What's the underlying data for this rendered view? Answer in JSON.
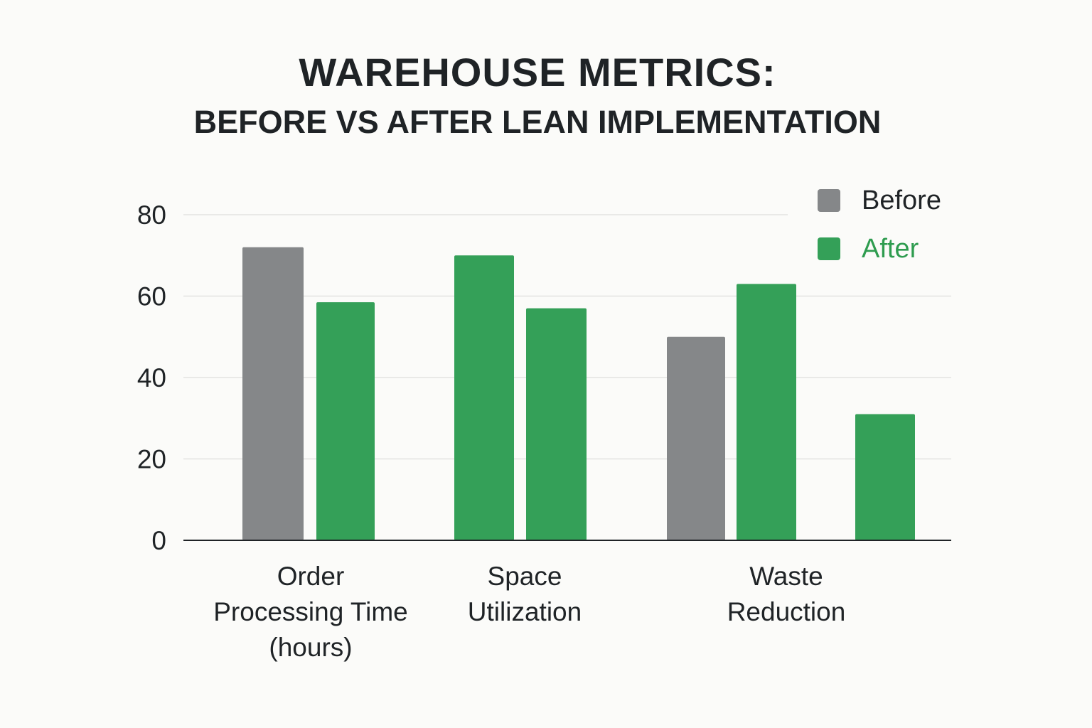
{
  "chart_data": {
    "type": "bar",
    "title": "WAREHOUSE METRICS:",
    "subtitle": "BEFORE VS AFTER LEAN IMPLEMENTATION",
    "xlabel": "",
    "ylabel": "",
    "ylim": [
      0,
      80
    ],
    "yticks": [
      0,
      20,
      40,
      60,
      80
    ],
    "grid": true,
    "legend_position": "top-right",
    "categories": [
      [
        "Order",
        "Processing Time",
        "(hours)"
      ],
      [
        "Space",
        "Utilization"
      ],
      [
        "Waste",
        "Reduction"
      ]
    ],
    "legend": [
      {
        "name": "Before",
        "color": "#858789",
        "text_color": "#1f2326"
      },
      {
        "name": "After",
        "color": "#34a058",
        "text_color": "#2e9c4f"
      }
    ],
    "bars": [
      {
        "category": 0,
        "value": 72,
        "color": "#858789"
      },
      {
        "category": 0,
        "value": 58.5,
        "color": "#34a058"
      },
      {
        "category": 1,
        "value": 70,
        "color": "#34a058"
      },
      {
        "category": 1,
        "value": 57,
        "color": "#34a058"
      },
      {
        "category": 2,
        "value": 50,
        "color": "#858789"
      },
      {
        "category": 2,
        "value": 63,
        "color": "#34a058"
      },
      {
        "category": 2,
        "value": 31,
        "color": "#34a058"
      }
    ]
  }
}
